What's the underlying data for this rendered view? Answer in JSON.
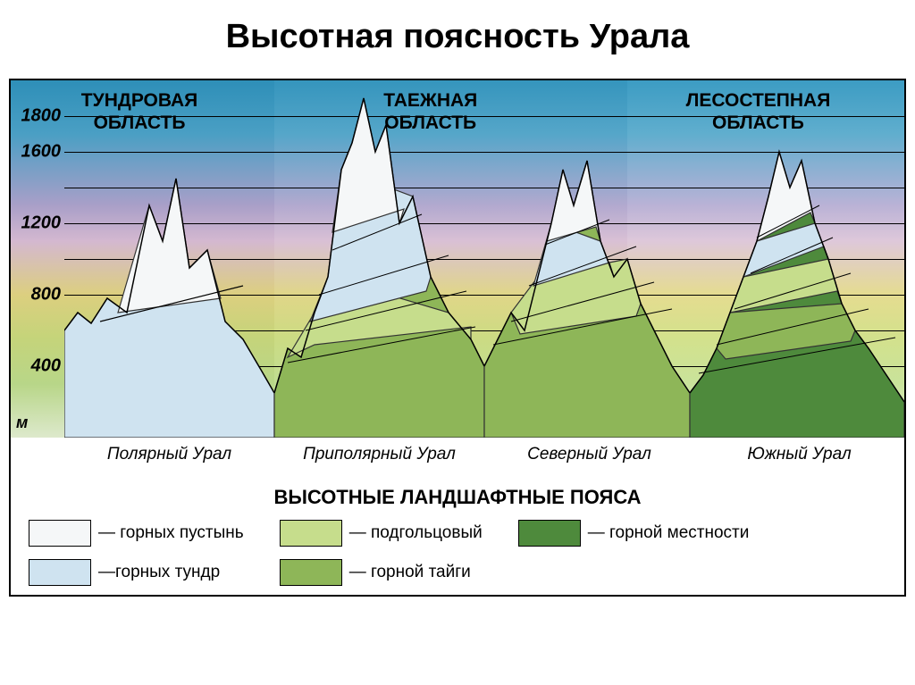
{
  "title": "Высотная поясность Урала",
  "chart": {
    "axis_unit": "м",
    "y_max": 2000,
    "y_ticks": [
      1800,
      1600,
      1200,
      800,
      400
    ],
    "gridlines": [
      1800,
      1600,
      1400,
      1200,
      1000,
      800,
      600,
      400,
      200
    ],
    "region_headers": [
      {
        "line1": "ТУНДРОВАЯ",
        "line2": "ОБЛАСТЬ",
        "left_pct": 2,
        "bg_class": "tundra",
        "width_pct": 25
      },
      {
        "line1": "ТАЕЖНАЯ",
        "line2": "ОБЛАСТЬ",
        "left_pct": 38,
        "bg_class": "taiga",
        "width_pct": 42
      },
      {
        "line1": "ЛЕСОСТЕПНАЯ",
        "line2": "ОБЛАСТЬ",
        "left_pct": 74,
        "bg_class": "steppe",
        "width_pct": 33
      }
    ],
    "mountains_x_labels": [
      "Полярный Урал",
      "Приполярный Урал",
      "Северный Урал",
      "Южный Урал"
    ],
    "zone_colors": {
      "desert": "#f5f7f8",
      "tundra_zone": "#cfe3f0",
      "subgoltsy": "#c6dd8c",
      "taiga_zone": "#8eb658",
      "forest": "#4e8a3c"
    }
  },
  "legend_title": "ВЫСОТНЫЕ ЛАНДШАФТНЫЕ ПОЯСА",
  "legend": {
    "col1": [
      {
        "label": "— горных пустынь",
        "color": "#f5f7f8"
      },
      {
        "label": "—горных тундр",
        "color": "#cfe3f0"
      }
    ],
    "col2": [
      {
        "label": "— подгольцовый",
        "color": "#c6dd8c"
      },
      {
        "label": "— горной тайги",
        "color": "#8eb658"
      }
    ],
    "col3": [
      {
        "label": "— горной местности",
        "color": "#4e8a3c"
      }
    ]
  }
}
